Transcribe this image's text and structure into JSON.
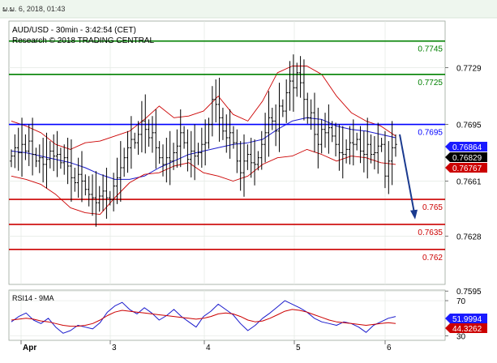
{
  "header": {
    "datetime": "ພ.ພ. 6, 2018, 01:43"
  },
  "chart_data": [
    {
      "type": "line",
      "subtype": "candlestick",
      "title": "AUD/USD - 30min - 3:42:54 (CET)",
      "subtitle": "Research © 2018 TRADING CENTRAL",
      "ylim": [
        0.7599,
        0.7757
      ],
      "y_ticks": [
        0.7729,
        0.7695,
        0.7661,
        0.7628,
        0.7595
      ],
      "x_ticks": [
        "Apr",
        "3",
        "4",
        "5",
        "6"
      ],
      "grid": true,
      "levels": [
        {
          "value": 0.7745,
          "label": "0.7745",
          "color": "#008000"
        },
        {
          "value": 0.7725,
          "label": "0.7725",
          "color": "#008000"
        },
        {
          "value": 0.7695,
          "label": "0.7695",
          "color": "#0000ff"
        },
        {
          "value": 0.765,
          "label": "0.765",
          "color": "#cc0000"
        },
        {
          "value": 0.7635,
          "label": "0.7635",
          "color": "#cc0000"
        },
        {
          "value": 0.762,
          "label": "0.762",
          "color": "#cc0000"
        }
      ],
      "price_tags": [
        {
          "value": 0.76864,
          "label": "0.76864",
          "color": "#1a1aff"
        },
        {
          "value": 0.76829,
          "label": "0.76829",
          "color": "#000000"
        },
        {
          "value": 0.76767,
          "label": "0.76767",
          "color": "#cc0000"
        }
      ],
      "arrow": {
        "from": 0.7689,
        "to": 0.7638,
        "color": "#1a3a8f"
      },
      "series": [
        {
          "name": "close",
          "values": [
            0.7676,
            0.7681,
            0.7678,
            0.7683,
            0.7679,
            0.7685,
            0.7677,
            0.7673,
            0.7675,
            0.7671,
            0.7674,
            0.7679,
            0.7676,
            0.7677,
            0.7672,
            0.7675,
            0.767,
            0.7663,
            0.766,
            0.7665,
            0.7661,
            0.7656,
            0.7653,
            0.7651,
            0.7648,
            0.7652,
            0.7655,
            0.7651,
            0.765,
            0.7658,
            0.7663,
            0.7669,
            0.7675,
            0.7681,
            0.7686,
            0.7684,
            0.7689,
            0.7697,
            0.7692,
            0.7687,
            0.769,
            0.7681,
            0.7675,
            0.7671,
            0.7675,
            0.7673,
            0.7678,
            0.7682,
            0.769,
            0.7684,
            0.7674,
            0.7679,
            0.7676,
            0.7678,
            0.7683,
            0.7684,
            0.7695,
            0.771,
            0.7707,
            0.7699,
            0.7691,
            0.7687,
            0.769,
            0.7684,
            0.7673,
            0.7666,
            0.7673,
            0.7677,
            0.7672,
            0.7671,
            0.7675,
            0.7683,
            0.769,
            0.7699,
            0.7697,
            0.7691,
            0.7706,
            0.7703,
            0.7714,
            0.7721,
            0.7717,
            0.7726,
            0.772,
            0.771,
            0.7699,
            0.7702,
            0.7689,
            0.7683,
            0.7692,
            0.769,
            0.7693,
            0.7688,
            0.7683,
            0.7678,
            0.7677,
            0.768,
            0.7684,
            0.7683,
            0.7686,
            0.7679,
            0.7677,
            0.7683,
            0.7677,
            0.7678,
            0.7682,
            0.7683,
            0.7664,
            0.7673,
            0.7681,
            0.7683
          ]
        },
        {
          "name": "moving-average",
          "values": [
            0.7679,
            0.7678,
            0.7676,
            0.7674,
            0.7672,
            0.7669,
            0.7665,
            0.7662,
            0.7662,
            0.7664,
            0.7669,
            0.7673,
            0.7677,
            0.7679,
            0.7681,
            0.7683,
            0.7684,
            0.7686,
            0.7692,
            0.7697,
            0.7699,
            0.7698,
            0.7694,
            0.7692,
            0.7691,
            0.7689,
            0.7687
          ]
        },
        {
          "name": "upper-band",
          "values": [
            0.7697,
            0.7694,
            0.769,
            0.7683,
            0.768,
            0.7684,
            0.7685,
            0.7688,
            0.7691,
            0.7698,
            0.7706,
            0.7699,
            0.77,
            0.7703,
            0.7712,
            0.7701,
            0.7697,
            0.7709,
            0.7726,
            0.773,
            0.773,
            0.7725,
            0.7712,
            0.7702,
            0.7697,
            0.7694,
            0.7688
          ]
        },
        {
          "name": "lower-band",
          "values": [
            0.7664,
            0.7662,
            0.7659,
            0.7653,
            0.7645,
            0.7642,
            0.7641,
            0.7651,
            0.766,
            0.7665,
            0.7666,
            0.767,
            0.7672,
            0.7666,
            0.7664,
            0.7661,
            0.7664,
            0.7671,
            0.7675,
            0.7676,
            0.768,
            0.7677,
            0.7673,
            0.7676,
            0.7675,
            0.7672,
            0.7671
          ]
        }
      ]
    },
    {
      "type": "line",
      "title": "RSI14 - 9MA",
      "ylim": [
        25,
        82
      ],
      "y_ticks": [
        70,
        30
      ],
      "grid": true,
      "price_tags": [
        {
          "value": 51.9994,
          "label": "51.9994",
          "color": "#1a1aff"
        },
        {
          "value": 44.3262,
          "label": "44.3262",
          "color": "#cc0000"
        }
      ],
      "series": [
        {
          "name": "rsi",
          "values": [
            46,
            52,
            56,
            48,
            44,
            50,
            40,
            33,
            36,
            42,
            40,
            38,
            45,
            57,
            64,
            68,
            60,
            55,
            62,
            56,
            48,
            53,
            60,
            52,
            46,
            40,
            52,
            58,
            66,
            60,
            54,
            44,
            36,
            42,
            50,
            56,
            63,
            70,
            66,
            62,
            57,
            50,
            46,
            44,
            42,
            46,
            44,
            40,
            34,
            42,
            46,
            50,
            52
          ]
        },
        {
          "name": "rsi-ma",
          "values": [
            48,
            49,
            50,
            49,
            47,
            46,
            44,
            42,
            41,
            41,
            42,
            44,
            48,
            53,
            57,
            59,
            58,
            57,
            56,
            55,
            54,
            53,
            52,
            51,
            50,
            49,
            50,
            52,
            55,
            56,
            55,
            52,
            48,
            46,
            47,
            50,
            54,
            58,
            60,
            59,
            57,
            54,
            51,
            48,
            46,
            45,
            44,
            43,
            42,
            43,
            44,
            45,
            44
          ]
        }
      ]
    }
  ]
}
